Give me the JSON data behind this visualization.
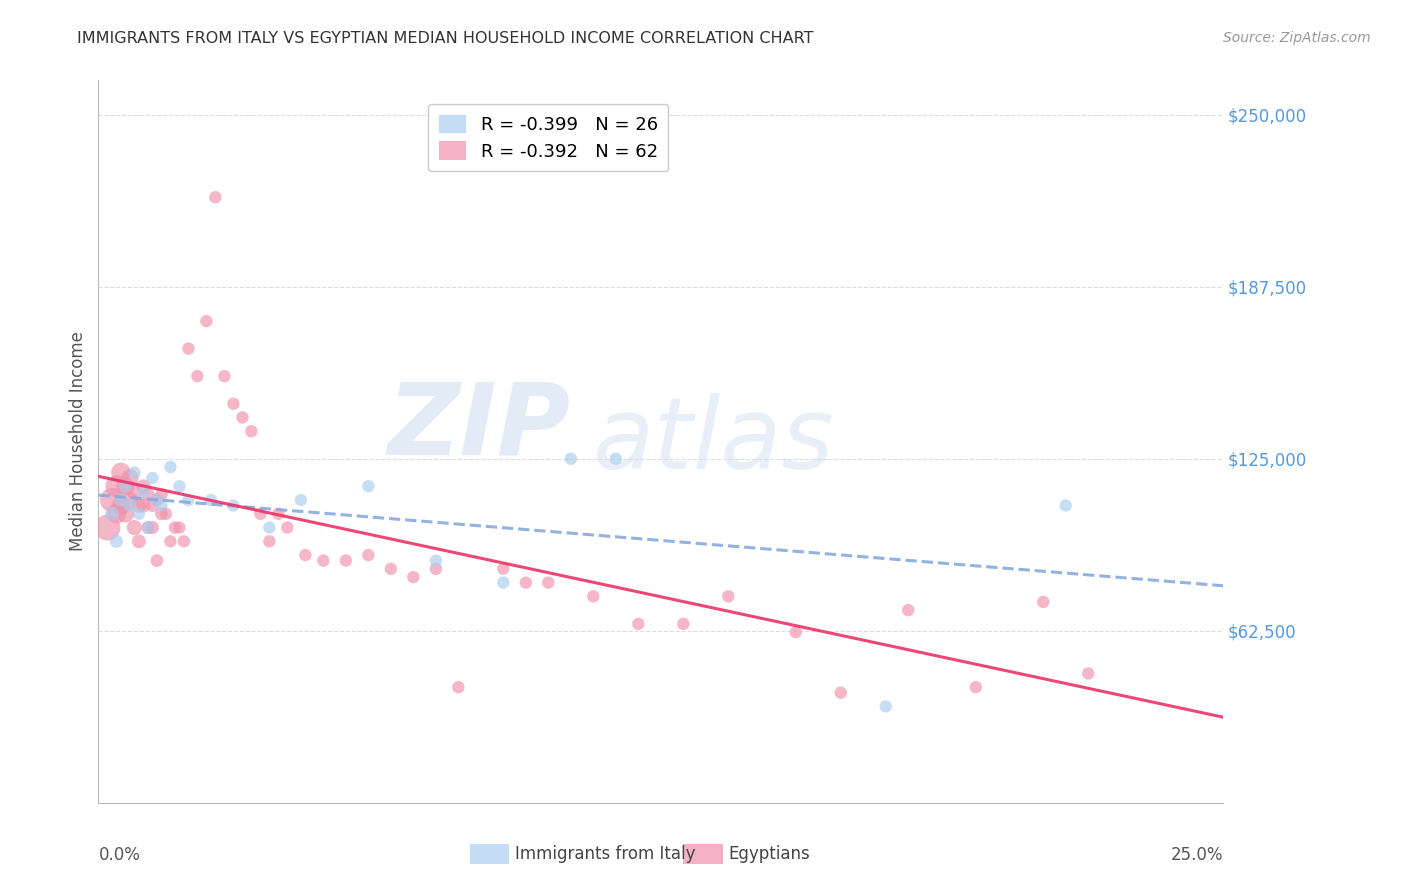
{
  "title": "IMMIGRANTS FROM ITALY VS EGYPTIAN MEDIAN HOUSEHOLD INCOME CORRELATION CHART",
  "source": "Source: ZipAtlas.com",
  "ylabel": "Median Household Income",
  "ytick_labels": [
    "$250,000",
    "$187,500",
    "$125,000",
    "$62,500"
  ],
  "ytick_values": [
    250000,
    187500,
    125000,
    62500
  ],
  "ymin": 0,
  "ymax": 262500,
  "xmin": 0.0,
  "xmax": 0.25,
  "legend_italy": "R = -0.399   N = 26",
  "legend_egypt": "R = -0.392   N = 62",
  "color_italy": "#aaccee",
  "color_egypt": "#f090aa",
  "trendline_italy_color": "#88aadd",
  "trendline_egypt_color": "#ee3366",
  "watermark_zip": "ZIP",
  "watermark_atlas": "atlas",
  "italy_x": [
    0.003,
    0.004,
    0.005,
    0.006,
    0.007,
    0.008,
    0.009,
    0.01,
    0.011,
    0.012,
    0.013,
    0.014,
    0.016,
    0.018,
    0.02,
    0.025,
    0.03,
    0.038,
    0.045,
    0.06,
    0.075,
    0.09,
    0.105,
    0.115,
    0.175,
    0.215
  ],
  "italy_y": [
    105000,
    95000,
    110000,
    115000,
    108000,
    120000,
    105000,
    113000,
    100000,
    118000,
    110000,
    108000,
    122000,
    115000,
    110000,
    110000,
    108000,
    100000,
    110000,
    115000,
    88000,
    80000,
    125000,
    125000,
    35000,
    108000
  ],
  "egypt_x": [
    0.002,
    0.003,
    0.004,
    0.004,
    0.005,
    0.005,
    0.006,
    0.006,
    0.007,
    0.007,
    0.008,
    0.008,
    0.009,
    0.009,
    0.01,
    0.01,
    0.011,
    0.011,
    0.012,
    0.012,
    0.013,
    0.013,
    0.014,
    0.014,
    0.015,
    0.016,
    0.017,
    0.018,
    0.019,
    0.02,
    0.022,
    0.024,
    0.026,
    0.028,
    0.03,
    0.032,
    0.034,
    0.036,
    0.038,
    0.04,
    0.042,
    0.046,
    0.05,
    0.055,
    0.06,
    0.065,
    0.07,
    0.075,
    0.08,
    0.09,
    0.095,
    0.1,
    0.11,
    0.12,
    0.13,
    0.14,
    0.155,
    0.165,
    0.18,
    0.195,
    0.21,
    0.22
  ],
  "egypt_y": [
    100000,
    110000,
    115000,
    105000,
    120000,
    108000,
    115000,
    105000,
    118000,
    110000,
    113000,
    100000,
    108000,
    95000,
    115000,
    108000,
    112000,
    100000,
    108000,
    100000,
    110000,
    88000,
    112000,
    105000,
    105000,
    95000,
    100000,
    100000,
    95000,
    165000,
    155000,
    175000,
    220000,
    155000,
    145000,
    140000,
    135000,
    105000,
    95000,
    105000,
    100000,
    90000,
    88000,
    88000,
    90000,
    85000,
    82000,
    85000,
    42000,
    85000,
    80000,
    80000,
    75000,
    65000,
    65000,
    75000,
    62000,
    40000,
    70000,
    42000,
    73000,
    47000
  ],
  "egypt_sizes": [
    350,
    300,
    250,
    200,
    200,
    180,
    180,
    160,
    160,
    140,
    130,
    120,
    110,
    100,
    100,
    100,
    90,
    90,
    90,
    90,
    85,
    85,
    85,
    85,
    80,
    80,
    80,
    80,
    80,
    80,
    80,
    80,
    80,
    80,
    80,
    80,
    80,
    80,
    80,
    80,
    80,
    80,
    80,
    80,
    80,
    80,
    80,
    80,
    80,
    80,
    80,
    80,
    80,
    80,
    80,
    80,
    80,
    80,
    80,
    80,
    80,
    80
  ],
  "italy_sizes": [
    100,
    90,
    90,
    80,
    80,
    80,
    80,
    80,
    80,
    80,
    80,
    80,
    80,
    80,
    80,
    80,
    80,
    80,
    80,
    80,
    80,
    80,
    80,
    80,
    80,
    80
  ]
}
